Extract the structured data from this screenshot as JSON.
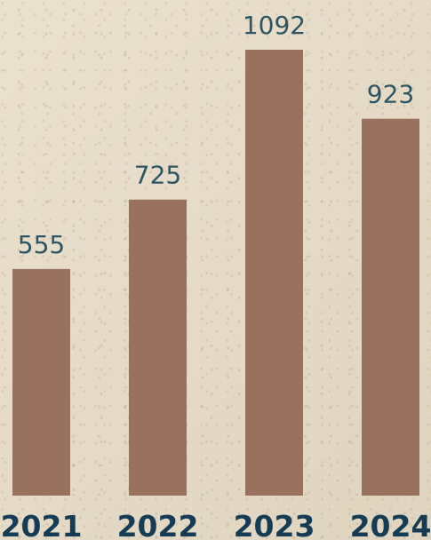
{
  "chart_data": {
    "type": "bar",
    "title": "",
    "xlabel": "",
    "ylabel": "",
    "categories": [
      "2021",
      "2022",
      "2023",
      "2024"
    ],
    "values": [
      555,
      725,
      1092,
      923
    ],
    "ylim": [
      0,
      1092
    ],
    "grid": false,
    "legend": "none"
  },
  "colors": {
    "bar": "#98725f",
    "value_label": "#2d5563",
    "category_label": "#163c55"
  }
}
